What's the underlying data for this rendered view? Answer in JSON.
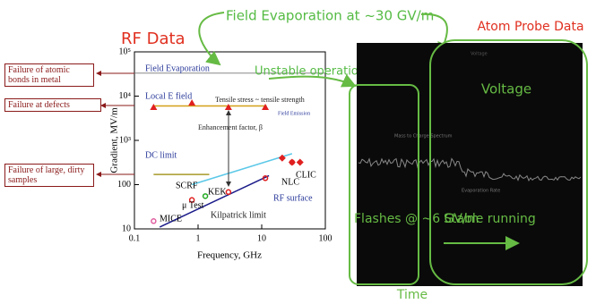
{
  "chart_data": {
    "type": "scatter",
    "title": "RF Data",
    "xlabel": "Frequency, GHz",
    "ylabel": "Gradient, MV/m",
    "xscale": "log",
    "yscale": "log",
    "xlim": [
      0.1,
      100
    ],
    "ylim": [
      10,
      100000
    ],
    "xticks": [
      0.1,
      1,
      10,
      100
    ],
    "yticks": [
      10,
      100,
      {
        "value": 1000,
        "label": "10³"
      },
      {
        "value": 10000,
        "label": "10⁴"
      },
      {
        "value": 100000,
        "label": "10⁵"
      }
    ],
    "lines": [
      {
        "name": "Field Evaporation",
        "color": "#777777",
        "x": [
          0.1,
          100
        ],
        "y": [
          33000,
          33000
        ]
      },
      {
        "name": "Local E field",
        "color": "#d4a017",
        "x": [
          0.2,
          12
        ],
        "y": [
          6000,
          6000
        ]
      },
      {
        "name": "DC limit",
        "color": "#a89a2a",
        "x": [
          0.2,
          1.5
        ],
        "y": [
          170,
          170
        ]
      },
      {
        "name": "RF surface",
        "color": "#5bc8e8",
        "x": [
          0.8,
          30
        ],
        "y": [
          100,
          500
        ]
      },
      {
        "name": "Kilpatrick limit",
        "color": "#1a1a8a",
        "x": [
          0.25,
          13
        ],
        "y": [
          11,
          160
        ]
      }
    ],
    "series": [
      {
        "marker": "triangle",
        "color": "#e02020",
        "x": [
          0.2,
          0.8,
          3,
          11.4
        ],
        "values": [
          5600,
          7000,
          5600,
          5600
        ]
      },
      {
        "marker": "diamond",
        "color": "#e02020",
        "x": [
          21,
          30,
          40
        ],
        "values": [
          400,
          320,
          320
        ]
      }
    ],
    "points": [
      {
        "label": "MICE",
        "x": 0.2,
        "y": 15,
        "color": "#e060a0"
      },
      {
        "label": "μ Test",
        "x": 0.8,
        "y": 45,
        "color": "#e02020"
      },
      {
        "label": "SCRF",
        "x": 1.3,
        "y": 55,
        "color": "#22aa22"
      },
      {
        "label": "KEK",
        "x": 3,
        "y": 68,
        "color": "#e02020"
      },
      {
        "label": "NLC",
        "x": 11.4,
        "y": 140,
        "color": "#e02020"
      },
      {
        "label": "CLIC",
        "x": 30,
        "y": 320,
        "color": "#e02020"
      }
    ],
    "annotations": [
      "Tensile stress ~ tensile strength",
      "Field Emission",
      "Enhancement factor, β",
      "RF surface"
    ]
  },
  "left_boxes": [
    "Failure of atomic bonds in metal",
    "Failure at defects",
    "Failure of large, dirty samples"
  ],
  "top_notes": [
    "Field Evaporation at ~30 GV/m",
    "Unstable operation"
  ],
  "atom_probe": {
    "title": "Atom Probe Data",
    "screen_labels": [
      "Voltage",
      "Mass to Charge Spectrum",
      "Evaporation Rate"
    ],
    "callouts": [
      "Voltage",
      "Flashes @ ~6 GV/m",
      "Stable running",
      "Time"
    ]
  }
}
